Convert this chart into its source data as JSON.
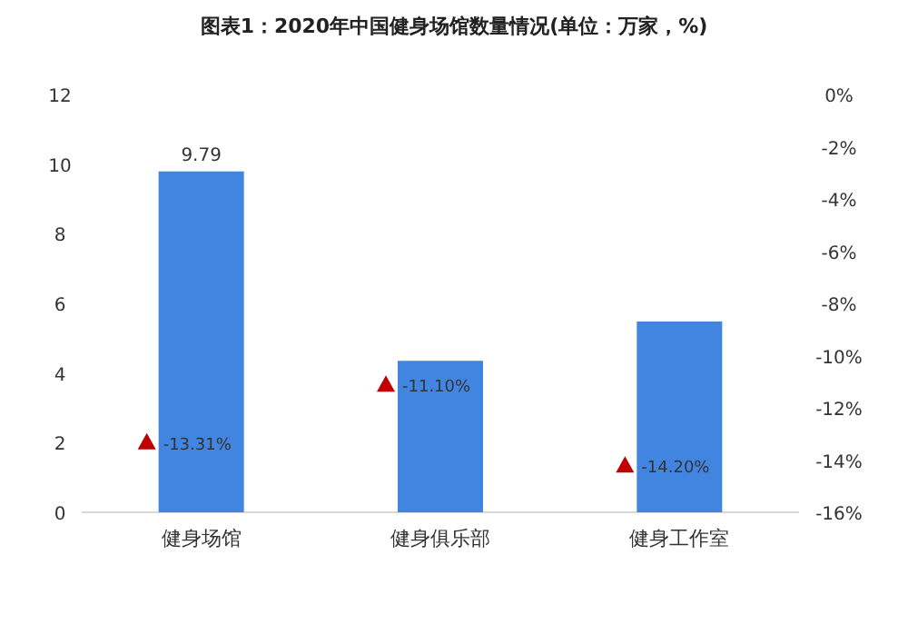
{
  "chart_data": {
    "type": "bar",
    "title": "图表1：2020年中国健身场馆数量情况(单位：万家，%)",
    "categories": [
      "健身场馆",
      "健身俱乐部",
      "健身工作室"
    ],
    "series": [
      {
        "color": "#4285e0",
        "values": [
          9.79,
          4.35,
          5.48
        ],
        "value_labels": [
          "9.79",
          null,
          null
        ]
      },
      {
        "type": "scatter",
        "axis": "y2",
        "marker": "triangle",
        "color": "#c00000",
        "values": [
          -13.31,
          -11.1,
          -14.2
        ],
        "value_labels": [
          "-13.31%",
          "-11.10%",
          "-14.20%"
        ]
      }
    ],
    "ylim": [
      0,
      12
    ],
    "yticks": [
      0,
      2,
      4,
      6,
      8,
      10,
      12
    ],
    "y2lim": [
      -16,
      0
    ],
    "y2ticks": [
      {
        "value": 0,
        "label": "0%"
      },
      {
        "value": -2,
        "label": "-2%"
      },
      {
        "value": -4,
        "label": "-4%"
      },
      {
        "value": -6,
        "label": "-6%"
      },
      {
        "value": -8,
        "label": "-8%"
      },
      {
        "value": -10,
        "label": "-10%"
      },
      {
        "value": -12,
        "label": "-12%"
      },
      {
        "value": -14,
        "label": "-14%"
      },
      {
        "value": -16,
        "label": "-16%"
      }
    ],
    "grid": false
  }
}
